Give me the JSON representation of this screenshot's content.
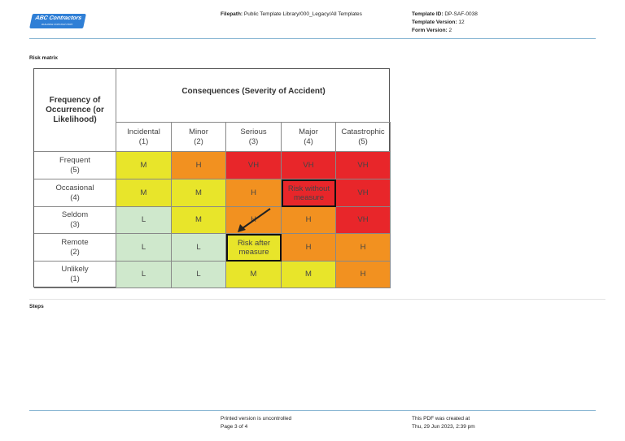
{
  "header": {
    "logo": "ABC Contractors",
    "logo_tagline": "BUILDING CONTRACTORS",
    "filepath_label": "Filepath:",
    "filepath": "Public Template Library/000_Legacy/All Templates",
    "template_id_label": "Template ID:",
    "template_id": "DP-SAF-0038",
    "template_version_label": "Template Version:",
    "template_version": "12",
    "form_version_label": "Form Version:",
    "form_version": "2"
  },
  "sections": {
    "risk_matrix": "Risk matrix",
    "steps": "Steps"
  },
  "matrix": {
    "row_header": "Frequency of Occurrence (or Likelihood)",
    "col_header": "Consequences (Severity of Accident)",
    "columns": [
      {
        "name": "Incidental",
        "n": "(1)"
      },
      {
        "name": "Minor",
        "n": "(2)"
      },
      {
        "name": "Serious",
        "n": "(3)"
      },
      {
        "name": "Major",
        "n": "(4)"
      },
      {
        "name": "Catastrophic",
        "n": "(5)"
      }
    ],
    "rows": [
      {
        "name": "Frequent",
        "n": "(5)",
        "cells": [
          "M",
          "H",
          "VH",
          "VH",
          "VH"
        ]
      },
      {
        "name": "Occasional",
        "n": "(4)",
        "cells": [
          "M",
          "M",
          "H",
          "Risk without measure",
          "VH"
        ]
      },
      {
        "name": "Seldom",
        "n": "(3)",
        "cells": [
          "L",
          "M",
          "H",
          "H",
          "VH"
        ]
      },
      {
        "name": "Remote",
        "n": "(2)",
        "cells": [
          "L",
          "L",
          "Risk after measure",
          "H",
          "H"
        ]
      },
      {
        "name": "Unlikely",
        "n": "(1)",
        "cells": [
          "L",
          "L",
          "M",
          "M",
          "H"
        ]
      }
    ],
    "levels": [
      [
        "M",
        "H",
        "VH",
        "VH",
        "VH"
      ],
      [
        "M",
        "M",
        "H",
        "VH",
        "VH"
      ],
      [
        "L",
        "M",
        "H",
        "H",
        "VH"
      ],
      [
        "L",
        "L",
        "M",
        "H",
        "H"
      ],
      [
        "L",
        "L",
        "M",
        "M",
        "H"
      ]
    ],
    "colors": {
      "L": "#cfe8cc",
      "M": "#e8e52a",
      "H": "#f29120",
      "VH": "#e8262a"
    }
  },
  "footer": {
    "uncontrolled": "Printed version is uncontrolled",
    "page": "Page 3 of 4",
    "created_label": "This PDF was created at",
    "created": "Thu, 29 Jun 2023, 2:39 pm"
  }
}
